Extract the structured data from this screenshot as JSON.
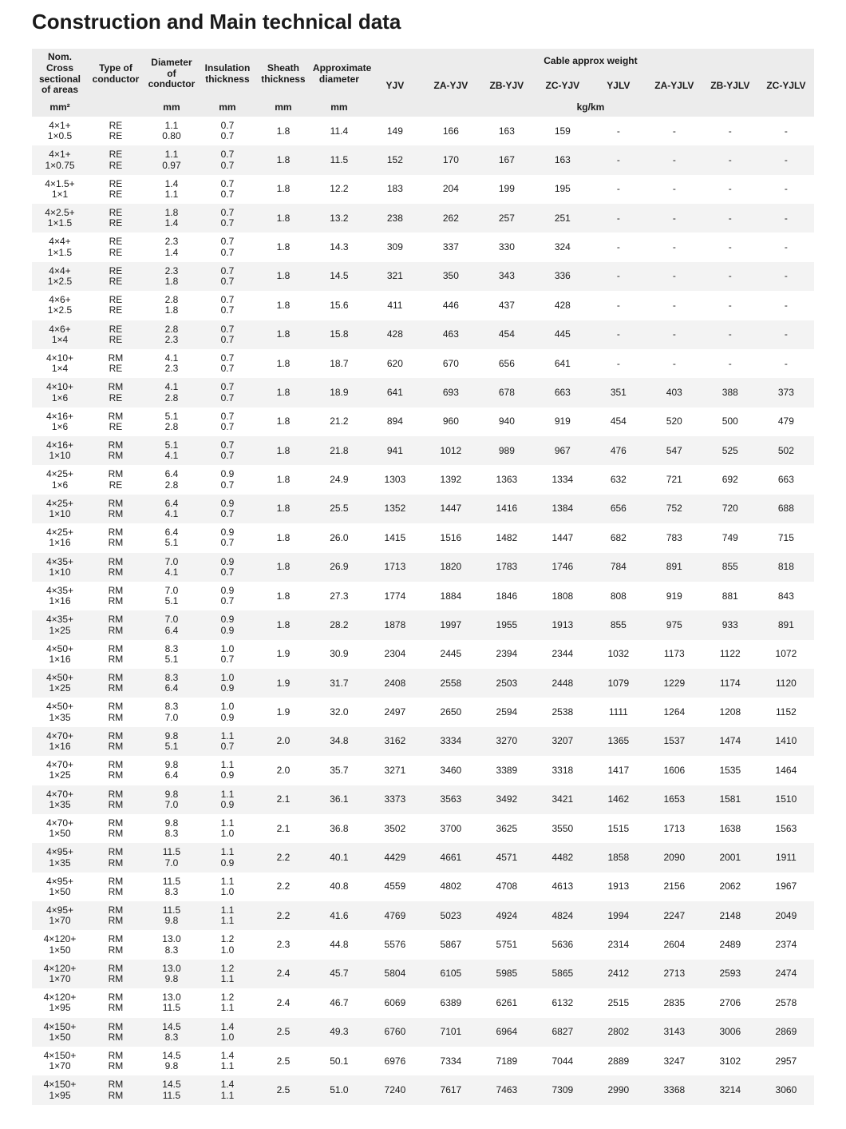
{
  "title": "Construction and Main technical data",
  "headers": {
    "nom": "Nom. Cross sectional of areas",
    "type": "Type of conductor",
    "diam": "Diameter of conductor",
    "ins": "Insulation thickness",
    "sheath": "Sheath thickness",
    "approx_d": "Approximate diameter",
    "weight_group": "Cable approx weight",
    "weight_cols": [
      "YJV",
      "ZA-YJV",
      "ZB-YJV",
      "ZC-YJV",
      "YJLV",
      "ZA-YJLV",
      "ZB-YJLV",
      "ZC-YJLV"
    ]
  },
  "units": {
    "nom": "mm²",
    "type": "",
    "diam": "mm",
    "ins": "mm",
    "sheath": "mm",
    "approx_d": "mm",
    "weight": "kg/km"
  },
  "rows": [
    {
      "nom": [
        "4×1+",
        "1×0.5"
      ],
      "type": [
        "RE",
        "RE"
      ],
      "diam": [
        "1.1",
        "0.80"
      ],
      "ins": [
        "0.7",
        "0.7"
      ],
      "sh": "1.8",
      "ad": "11.4",
      "w": [
        "149",
        "166",
        "163",
        "159",
        "-",
        "-",
        "-",
        "-"
      ]
    },
    {
      "nom": [
        "4×1+",
        "1×0.75"
      ],
      "type": [
        "RE",
        "RE"
      ],
      "diam": [
        "1.1",
        "0.97"
      ],
      "ins": [
        "0.7",
        "0.7"
      ],
      "sh": "1.8",
      "ad": "11.5",
      "w": [
        "152",
        "170",
        "167",
        "163",
        "-",
        "-",
        "-",
        "-"
      ]
    },
    {
      "nom": [
        "4×1.5+",
        "1×1"
      ],
      "type": [
        "RE",
        "RE"
      ],
      "diam": [
        "1.4",
        "1.1"
      ],
      "ins": [
        "0.7",
        "0.7"
      ],
      "sh": "1.8",
      "ad": "12.2",
      "w": [
        "183",
        "204",
        "199",
        "195",
        "-",
        "-",
        "-",
        "-"
      ]
    },
    {
      "nom": [
        "4×2.5+",
        "1×1.5"
      ],
      "type": [
        "RE",
        "RE"
      ],
      "diam": [
        "1.8",
        "1.4"
      ],
      "ins": [
        "0.7",
        "0.7"
      ],
      "sh": "1.8",
      "ad": "13.2",
      "w": [
        "238",
        "262",
        "257",
        "251",
        "-",
        "-",
        "-",
        "-"
      ]
    },
    {
      "nom": [
        "4×4+",
        "1×1.5"
      ],
      "type": [
        "RE",
        "RE"
      ],
      "diam": [
        "2.3",
        "1.4"
      ],
      "ins": [
        "0.7",
        "0.7"
      ],
      "sh": "1.8",
      "ad": "14.3",
      "w": [
        "309",
        "337",
        "330",
        "324",
        "-",
        "-",
        "-",
        "-"
      ]
    },
    {
      "nom": [
        "4×4+",
        "1×2.5"
      ],
      "type": [
        "RE",
        "RE"
      ],
      "diam": [
        "2.3",
        "1.8"
      ],
      "ins": [
        "0.7",
        "0.7"
      ],
      "sh": "1.8",
      "ad": "14.5",
      "w": [
        "321",
        "350",
        "343",
        "336",
        "-",
        "-",
        "-",
        "-"
      ]
    },
    {
      "nom": [
        "4×6+",
        "1×2.5"
      ],
      "type": [
        "RE",
        "RE"
      ],
      "diam": [
        "2.8",
        "1.8"
      ],
      "ins": [
        "0.7",
        "0.7"
      ],
      "sh": "1.8",
      "ad": "15.6",
      "w": [
        "411",
        "446",
        "437",
        "428",
        "-",
        "-",
        "-",
        "-"
      ]
    },
    {
      "nom": [
        "4×6+",
        "1×4"
      ],
      "type": [
        "RE",
        "RE"
      ],
      "diam": [
        "2.8",
        "2.3"
      ],
      "ins": [
        "0.7",
        "0.7"
      ],
      "sh": "1.8",
      "ad": "15.8",
      "w": [
        "428",
        "463",
        "454",
        "445",
        "-",
        "-",
        "-",
        "-"
      ]
    },
    {
      "nom": [
        "4×10+",
        "1×4"
      ],
      "type": [
        "RM",
        "RE"
      ],
      "diam": [
        "4.1",
        "2.3"
      ],
      "ins": [
        "0.7",
        "0.7"
      ],
      "sh": "1.8",
      "ad": "18.7",
      "w": [
        "620",
        "670",
        "656",
        "641",
        "-",
        "-",
        "-",
        "-"
      ]
    },
    {
      "nom": [
        "4×10+",
        "1×6"
      ],
      "type": [
        "RM",
        "RE"
      ],
      "diam": [
        "4.1",
        "2.8"
      ],
      "ins": [
        "0.7",
        "0.7"
      ],
      "sh": "1.8",
      "ad": "18.9",
      "w": [
        "641",
        "693",
        "678",
        "663",
        "351",
        "403",
        "388",
        "373"
      ]
    },
    {
      "nom": [
        "4×16+",
        "1×6"
      ],
      "type": [
        "RM",
        "RE"
      ],
      "diam": [
        "5.1",
        "2.8"
      ],
      "ins": [
        "0.7",
        "0.7"
      ],
      "sh": "1.8",
      "ad": "21.2",
      "w": [
        "894",
        "960",
        "940",
        "919",
        "454",
        "520",
        "500",
        "479"
      ]
    },
    {
      "nom": [
        "4×16+",
        "1×10"
      ],
      "type": [
        "RM",
        "RM"
      ],
      "diam": [
        "5.1",
        "4.1"
      ],
      "ins": [
        "0.7",
        "0.7"
      ],
      "sh": "1.8",
      "ad": "21.8",
      "w": [
        "941",
        "1012",
        "989",
        "967",
        "476",
        "547",
        "525",
        "502"
      ]
    },
    {
      "nom": [
        "4×25+",
        "1×6"
      ],
      "type": [
        "RM",
        "RE"
      ],
      "diam": [
        "6.4",
        "2.8"
      ],
      "ins": [
        "0.9",
        "0.7"
      ],
      "sh": "1.8",
      "ad": "24.9",
      "w": [
        "1303",
        "1392",
        "1363",
        "1334",
        "632",
        "721",
        "692",
        "663"
      ]
    },
    {
      "nom": [
        "4×25+",
        "1×10"
      ],
      "type": [
        "RM",
        "RM"
      ],
      "diam": [
        "6.4",
        "4.1"
      ],
      "ins": [
        "0.9",
        "0.7"
      ],
      "sh": "1.8",
      "ad": "25.5",
      "w": [
        "1352",
        "1447",
        "1416",
        "1384",
        "656",
        "752",
        "720",
        "688"
      ]
    },
    {
      "nom": [
        "4×25+",
        "1×16"
      ],
      "type": [
        "RM",
        "RM"
      ],
      "diam": [
        "6.4",
        "5.1"
      ],
      "ins": [
        "0.9",
        "0.7"
      ],
      "sh": "1.8",
      "ad": "26.0",
      "w": [
        "1415",
        "1516",
        "1482",
        "1447",
        "682",
        "783",
        "749",
        "715"
      ]
    },
    {
      "nom": [
        "4×35+",
        "1×10"
      ],
      "type": [
        "RM",
        "RM"
      ],
      "diam": [
        "7.0",
        "4.1"
      ],
      "ins": [
        "0.9",
        "0.7"
      ],
      "sh": "1.8",
      "ad": "26.9",
      "w": [
        "1713",
        "1820",
        "1783",
        "1746",
        "784",
        "891",
        "855",
        "818"
      ]
    },
    {
      "nom": [
        "4×35+",
        "1×16"
      ],
      "type": [
        "RM",
        "RM"
      ],
      "diam": [
        "7.0",
        "5.1"
      ],
      "ins": [
        "0.9",
        "0.7"
      ],
      "sh": "1.8",
      "ad": "27.3",
      "w": [
        "1774",
        "1884",
        "1846",
        "1808",
        "808",
        "919",
        "881",
        "843"
      ]
    },
    {
      "nom": [
        "4×35+",
        "1×25"
      ],
      "type": [
        "RM",
        "RM"
      ],
      "diam": [
        "7.0",
        "6.4"
      ],
      "ins": [
        "0.9",
        "0.9"
      ],
      "sh": "1.8",
      "ad": "28.2",
      "w": [
        "1878",
        "1997",
        "1955",
        "1913",
        "855",
        "975",
        "933",
        "891"
      ]
    },
    {
      "nom": [
        "4×50+",
        "1×16"
      ],
      "type": [
        "RM",
        "RM"
      ],
      "diam": [
        "8.3",
        "5.1"
      ],
      "ins": [
        "1.0",
        "0.7"
      ],
      "sh": "1.9",
      "ad": "30.9",
      "w": [
        "2304",
        "2445",
        "2394",
        "2344",
        "1032",
        "1173",
        "1122",
        "1072"
      ]
    },
    {
      "nom": [
        "4×50+",
        "1×25"
      ],
      "type": [
        "RM",
        "RM"
      ],
      "diam": [
        "8.3",
        "6.4"
      ],
      "ins": [
        "1.0",
        "0.9"
      ],
      "sh": "1.9",
      "ad": "31.7",
      "w": [
        "2408",
        "2558",
        "2503",
        "2448",
        "1079",
        "1229",
        "1174",
        "1120"
      ]
    },
    {
      "nom": [
        "4×50+",
        "1×35"
      ],
      "type": [
        "RM",
        "RM"
      ],
      "diam": [
        "8.3",
        "7.0"
      ],
      "ins": [
        "1.0",
        "0.9"
      ],
      "sh": "1.9",
      "ad": "32.0",
      "w": [
        "2497",
        "2650",
        "2594",
        "2538",
        "1111",
        "1264",
        "1208",
        "1152"
      ]
    },
    {
      "nom": [
        "4×70+",
        "1×16"
      ],
      "type": [
        "RM",
        "RM"
      ],
      "diam": [
        "9.8",
        "5.1"
      ],
      "ins": [
        "1.1",
        "0.7"
      ],
      "sh": "2.0",
      "ad": "34.8",
      "w": [
        "3162",
        "3334",
        "3270",
        "3207",
        "1365",
        "1537",
        "1474",
        "1410"
      ]
    },
    {
      "nom": [
        "4×70+",
        "1×25"
      ],
      "type": [
        "RM",
        "RM"
      ],
      "diam": [
        "9.8",
        "6.4"
      ],
      "ins": [
        "1.1",
        "0.9"
      ],
      "sh": "2.0",
      "ad": "35.7",
      "w": [
        "3271",
        "3460",
        "3389",
        "3318",
        "1417",
        "1606",
        "1535",
        "1464"
      ]
    },
    {
      "nom": [
        "4×70+",
        "1×35"
      ],
      "type": [
        "RM",
        "RM"
      ],
      "diam": [
        "9.8",
        "7.0"
      ],
      "ins": [
        "1.1",
        "0.9"
      ],
      "sh": "2.1",
      "ad": "36.1",
      "w": [
        "3373",
        "3563",
        "3492",
        "3421",
        "1462",
        "1653",
        "1581",
        "1510"
      ]
    },
    {
      "nom": [
        "4×70+",
        "1×50"
      ],
      "type": [
        "RM",
        "RM"
      ],
      "diam": [
        "9.8",
        "8.3"
      ],
      "ins": [
        "1.1",
        "1.0"
      ],
      "sh": "2.1",
      "ad": "36.8",
      "w": [
        "3502",
        "3700",
        "3625",
        "3550",
        "1515",
        "1713",
        "1638",
        "1563"
      ]
    },
    {
      "nom": [
        "4×95+",
        "1×35"
      ],
      "type": [
        "RM",
        "RM"
      ],
      "diam": [
        "11.5",
        "7.0"
      ],
      "ins": [
        "1.1",
        "0.9"
      ],
      "sh": "2.2",
      "ad": "40.1",
      "w": [
        "4429",
        "4661",
        "4571",
        "4482",
        "1858",
        "2090",
        "2001",
        "1911"
      ]
    },
    {
      "nom": [
        "4×95+",
        "1×50"
      ],
      "type": [
        "RM",
        "RM"
      ],
      "diam": [
        "11.5",
        "8.3"
      ],
      "ins": [
        "1.1",
        "1.0"
      ],
      "sh": "2.2",
      "ad": "40.8",
      "w": [
        "4559",
        "4802",
        "4708",
        "4613",
        "1913",
        "2156",
        "2062",
        "1967"
      ]
    },
    {
      "nom": [
        "4×95+",
        "1×70"
      ],
      "type": [
        "RM",
        "RM"
      ],
      "diam": [
        "11.5",
        "9.8"
      ],
      "ins": [
        "1.1",
        "1.1"
      ],
      "sh": "2.2",
      "ad": "41.6",
      "w": [
        "4769",
        "5023",
        "4924",
        "4824",
        "1994",
        "2247",
        "2148",
        "2049"
      ]
    },
    {
      "nom": [
        "4×120+",
        "1×50"
      ],
      "type": [
        "RM",
        "RM"
      ],
      "diam": [
        "13.0",
        "8.3"
      ],
      "ins": [
        "1.2",
        "1.0"
      ],
      "sh": "2.3",
      "ad": "44.8",
      "w": [
        "5576",
        "5867",
        "5751",
        "5636",
        "2314",
        "2604",
        "2489",
        "2374"
      ]
    },
    {
      "nom": [
        "4×120+",
        "1×70"
      ],
      "type": [
        "RM",
        "RM"
      ],
      "diam": [
        "13.0",
        "9.8"
      ],
      "ins": [
        "1.2",
        "1.1"
      ],
      "sh": "2.4",
      "ad": "45.7",
      "w": [
        "5804",
        "6105",
        "5985",
        "5865",
        "2412",
        "2713",
        "2593",
        "2474"
      ]
    },
    {
      "nom": [
        "4×120+",
        "1×95"
      ],
      "type": [
        "RM",
        "RM"
      ],
      "diam": [
        "13.0",
        "11.5"
      ],
      "ins": [
        "1.2",
        "1.1"
      ],
      "sh": "2.4",
      "ad": "46.7",
      "w": [
        "6069",
        "6389",
        "6261",
        "6132",
        "2515",
        "2835",
        "2706",
        "2578"
      ]
    },
    {
      "nom": [
        "4×150+",
        "1×50"
      ],
      "type": [
        "RM",
        "RM"
      ],
      "diam": [
        "14.5",
        "8.3"
      ],
      "ins": [
        "1.4",
        "1.0"
      ],
      "sh": "2.5",
      "ad": "49.3",
      "w": [
        "6760",
        "7101",
        "6964",
        "6827",
        "2802",
        "3143",
        "3006",
        "2869"
      ]
    },
    {
      "nom": [
        "4×150+",
        "1×70"
      ],
      "type": [
        "RM",
        "RM"
      ],
      "diam": [
        "14.5",
        "9.8"
      ],
      "ins": [
        "1.4",
        "1.1"
      ],
      "sh": "2.5",
      "ad": "50.1",
      "w": [
        "6976",
        "7334",
        "7189",
        "7044",
        "2889",
        "3247",
        "3102",
        "2957"
      ]
    },
    {
      "nom": [
        "4×150+",
        "1×95"
      ],
      "type": [
        "RM",
        "RM"
      ],
      "diam": [
        "14.5",
        "11.5"
      ],
      "ins": [
        "1.4",
        "1.1"
      ],
      "sh": "2.5",
      "ad": "51.0",
      "w": [
        "7240",
        "7617",
        "7463",
        "7309",
        "2990",
        "3368",
        "3214",
        "3060"
      ]
    }
  ]
}
